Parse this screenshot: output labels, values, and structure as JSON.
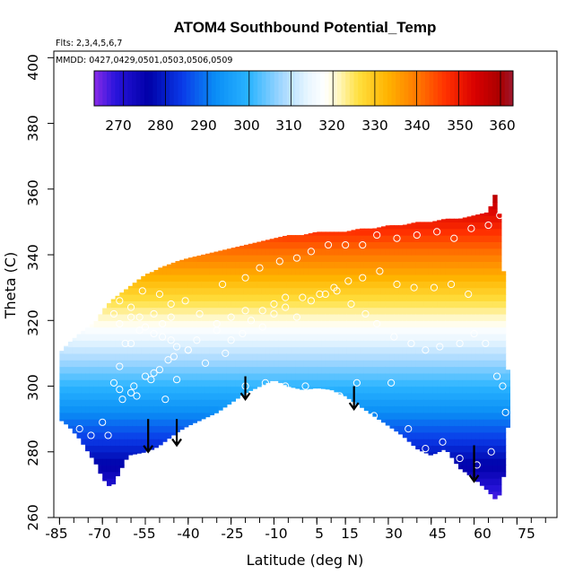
{
  "chart_data": {
    "type": "heatmap",
    "title": "ATOM4 Southbound Potential_Temp",
    "flights_note": "Flts: 2,3,4,5,6,7",
    "dates_note": "MMDD: 0427,0429,0501,0503,0506,0509",
    "xlabel": "Latitude (deg N)",
    "ylabel": "Theta (C)",
    "xlim": [
      -87,
      89
    ],
    "ylim": [
      260,
      402
    ],
    "x_tick_labels": [
      "-85",
      "-70",
      "-55",
      "-40",
      "-25",
      "-10",
      "5",
      "15",
      "30",
      "45",
      "60",
      "75"
    ],
    "y_tick_labels": [
      "260",
      "280",
      "300",
      "320",
      "340",
      "360",
      "380",
      "400"
    ],
    "colorbar": {
      "range": [
        263,
        363
      ],
      "tick_labels": [
        "270",
        "280",
        "290",
        "300",
        "310",
        "320",
        "330",
        "340",
        "350",
        "360"
      ],
      "stops": [
        {
          "value": 263,
          "color": "#8a2be8"
        },
        {
          "value": 268,
          "color": "#2a14dc"
        },
        {
          "value": 276,
          "color": "#0000a8"
        },
        {
          "value": 284,
          "color": "#0a3ae8"
        },
        {
          "value": 292,
          "color": "#0a8ef6"
        },
        {
          "value": 300,
          "color": "#2ab4ff"
        },
        {
          "value": 308,
          "color": "#a6d8ff"
        },
        {
          "value": 314,
          "color": "#e8f6ff"
        },
        {
          "value": 318,
          "color": "#ffffff"
        },
        {
          "value": 321,
          "color": "#fff8c8"
        },
        {
          "value": 326,
          "color": "#ffe040"
        },
        {
          "value": 333,
          "color": "#ffb400"
        },
        {
          "value": 340,
          "color": "#ff7a00"
        },
        {
          "value": 347,
          "color": "#ff3000"
        },
        {
          "value": 354,
          "color": "#d80000"
        },
        {
          "value": 360,
          "color": "#a80000"
        },
        {
          "value": 363,
          "color": "#a01830"
        }
      ]
    },
    "field": {
      "description": "potential temperature equals theta; shaded between lower and upper boundaries",
      "lat": [
        -85,
        -82,
        -78,
        -75,
        -72,
        -70,
        -67,
        -64,
        -61,
        -58,
        -55,
        -52,
        -50,
        -47,
        -44,
        -40,
        -35,
        -30,
        -25,
        -20,
        -15,
        -10,
        -5,
        0,
        5,
        10,
        15,
        20,
        25,
        30,
        35,
        40,
        45,
        50,
        55,
        60,
        65,
        68,
        70,
        72
      ],
      "theta_top": [
        310,
        313,
        316,
        318,
        320,
        323,
        326,
        328,
        330,
        332,
        334,
        335,
        336,
        337,
        338,
        339,
        340,
        341,
        342,
        343,
        344,
        345,
        346,
        346,
        347,
        347,
        347,
        348,
        348,
        349,
        349,
        350,
        350,
        351,
        351,
        352,
        353,
        360,
        340,
        300
      ],
      "theta_bottom": [
        290,
        288,
        284,
        280,
        276,
        272,
        269,
        274,
        279,
        279.5,
        280,
        281,
        282,
        284,
        286,
        288,
        290,
        292,
        295,
        298,
        300,
        302,
        300,
        299,
        299.5,
        299,
        297,
        294,
        291,
        288,
        285,
        281,
        279,
        281,
        275,
        272,
        268,
        265,
        270,
        290
      ]
    },
    "scatter_points": {
      "label": "flight observations (open circles)",
      "lat": [
        -78,
        -74,
        -70,
        -68,
        -66,
        -64,
        -64,
        -63,
        -60,
        -58,
        -55,
        -52,
        -50,
        -47,
        -45,
        -62,
        -60,
        -57,
        -55,
        -52,
        -49,
        -46,
        -44,
        -40,
        -37,
        -30,
        -25,
        -21,
        -18,
        -14,
        -10,
        -6,
        -2,
        3,
        8,
        12,
        17,
        22,
        26,
        32,
        38,
        43,
        48,
        55,
        60,
        64,
        68,
        70,
        71,
        -66,
        -64,
        -60,
        -57,
        -52,
        -49,
        -46,
        -30,
        -25,
        -20,
        -14,
        -10,
        -6,
        0,
        6,
        11,
        16,
        21,
        27,
        33,
        39,
        46,
        52,
        58,
        -64,
        -60,
        -56,
        -50,
        -46,
        -41,
        -36,
        -28,
        -20,
        -15,
        -8,
        -2,
        3,
        9,
        15,
        21,
        26,
        33,
        40,
        47,
        53,
        59,
        65,
        69,
        71,
        -59,
        -53,
        -48,
        -44,
        -40,
        -34,
        -27,
        -20,
        -13,
        -6,
        1,
        7,
        13,
        19,
        25,
        31,
        37,
        43,
        49,
        55,
        61,
        66
      ],
      "theta": [
        287,
        285,
        289,
        285,
        301,
        299,
        306,
        296,
        298,
        297,
        303,
        304,
        305,
        308,
        309,
        313,
        313,
        317,
        318,
        316,
        315,
        314,
        312,
        311,
        314,
        317,
        314,
        316,
        320,
        318,
        322,
        324,
        321,
        326,
        328,
        329,
        325,
        322,
        319,
        315,
        313,
        311,
        312,
        313,
        316,
        313,
        303,
        300,
        292,
        322,
        319,
        321,
        321,
        322,
        319,
        321,
        319,
        321,
        323,
        323,
        325,
        327,
        327,
        328,
        330,
        332,
        333,
        335,
        331,
        330,
        330,
        331,
        328,
        326,
        324,
        329,
        328,
        325,
        326,
        322,
        331,
        333,
        336,
        338,
        339,
        341,
        343,
        343,
        343,
        346,
        345,
        346,
        347,
        345,
        348,
        349,
        352,
        357,
        300,
        302,
        296,
        302,
        311,
        307,
        310,
        300,
        301,
        300,
        300,
        298,
        297,
        301,
        291,
        301,
        287,
        281,
        283,
        278,
        276,
        280
      ],
      "color": "#ffffff"
    },
    "arrows": {
      "label": "downward arrows marking locations",
      "lat": [
        -54,
        -44,
        -20,
        18,
        60
      ],
      "theta_start": [
        290,
        290,
        303,
        300,
        282
      ],
      "theta_end": [
        280,
        282,
        296,
        293,
        271
      ],
      "color": "#000000"
    }
  }
}
